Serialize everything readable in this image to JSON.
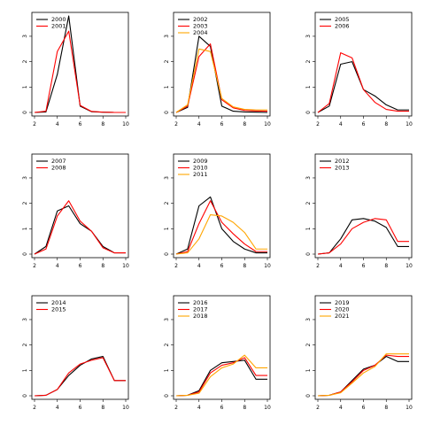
{
  "palette": {
    "black": "#000000",
    "red": "#ff0000",
    "orange": "#ffa500"
  },
  "chart_data": [
    {
      "type": "line",
      "title": "",
      "xlabel": "",
      "ylabel": "",
      "x": [
        2,
        3,
        4,
        5,
        6,
        7,
        8,
        9,
        10
      ],
      "xlim": [
        2,
        10
      ],
      "ylim": [
        0,
        3.8
      ],
      "xticks": [
        "2",
        "4",
        "6",
        "8",
        "10"
      ],
      "yticks": [
        "0",
        "1",
        "2",
        "3"
      ],
      "grid": false,
      "legend": "top-left",
      "series": [
        {
          "name": "2000",
          "color": "black",
          "values": [
            0.0,
            0.02,
            1.5,
            3.8,
            0.25,
            0.03,
            0.01,
            0.0,
            0.0
          ]
        },
        {
          "name": "2001",
          "color": "red",
          "values": [
            0.0,
            0.05,
            2.4,
            3.2,
            0.28,
            0.04,
            0.01,
            0.0,
            0.0
          ]
        }
      ]
    },
    {
      "type": "line",
      "title": "",
      "xlabel": "",
      "ylabel": "",
      "x": [
        2,
        3,
        4,
        5,
        6,
        7,
        8,
        9,
        10
      ],
      "xlim": [
        2,
        10
      ],
      "ylim": [
        0,
        3.8
      ],
      "xticks": [
        "2",
        "4",
        "6",
        "8",
        "10"
      ],
      "yticks": [
        "0",
        "1",
        "2",
        "3"
      ],
      "grid": false,
      "legend": "top-left",
      "series": [
        {
          "name": "2002",
          "color": "black",
          "values": [
            0.0,
            0.2,
            3.0,
            2.6,
            0.25,
            0.05,
            0.02,
            0.01,
            0.0
          ]
        },
        {
          "name": "2003",
          "color": "red",
          "values": [
            0.0,
            0.25,
            2.2,
            2.7,
            0.5,
            0.18,
            0.08,
            0.06,
            0.05
          ]
        },
        {
          "name": "2004",
          "color": "orange",
          "values": [
            0.0,
            0.3,
            2.5,
            2.4,
            0.55,
            0.22,
            0.12,
            0.1,
            0.1
          ]
        }
      ]
    },
    {
      "type": "line",
      "title": "",
      "xlabel": "",
      "ylabel": "",
      "x": [
        2,
        3,
        4,
        5,
        6,
        7,
        8,
        9,
        10
      ],
      "xlim": [
        2,
        10
      ],
      "ylim": [
        0,
        3.8
      ],
      "xticks": [
        "2",
        "4",
        "6",
        "8",
        "10"
      ],
      "yticks": [
        "0",
        "1",
        "2",
        "3"
      ],
      "grid": false,
      "legend": "top-left",
      "series": [
        {
          "name": "2005",
          "color": "black",
          "values": [
            0.0,
            0.25,
            1.9,
            2.0,
            0.9,
            0.65,
            0.3,
            0.1,
            0.1
          ]
        },
        {
          "name": "2006",
          "color": "red",
          "values": [
            0.0,
            0.35,
            2.35,
            2.15,
            0.9,
            0.4,
            0.12,
            0.05,
            0.05
          ]
        }
      ]
    },
    {
      "type": "line",
      "title": "",
      "xlabel": "",
      "ylabel": "",
      "x": [
        2,
        3,
        4,
        5,
        6,
        7,
        8,
        9,
        10
      ],
      "xlim": [
        2,
        10
      ],
      "ylim": [
        0,
        3.8
      ],
      "xticks": [
        "2",
        "4",
        "6",
        "8",
        "10"
      ],
      "yticks": [
        "0",
        "1",
        "2",
        "3"
      ],
      "grid": false,
      "legend": "top-left",
      "series": [
        {
          "name": "2007",
          "color": "black",
          "values": [
            0.0,
            0.3,
            1.7,
            1.9,
            1.2,
            0.9,
            0.3,
            0.05,
            0.05
          ]
        },
        {
          "name": "2008",
          "color": "red",
          "values": [
            0.0,
            0.2,
            1.5,
            2.1,
            1.3,
            0.9,
            0.25,
            0.05,
            0.05
          ]
        }
      ]
    },
    {
      "type": "line",
      "title": "",
      "xlabel": "",
      "ylabel": "",
      "x": [
        2,
        3,
        4,
        5,
        6,
        7,
        8,
        9,
        10
      ],
      "xlim": [
        2,
        10
      ],
      "ylim": [
        0,
        3.8
      ],
      "xticks": [
        "2",
        "4",
        "6",
        "8",
        "10"
      ],
      "yticks": [
        "0",
        "1",
        "2",
        "3"
      ],
      "grid": false,
      "legend": "top-left",
      "series": [
        {
          "name": "2009",
          "color": "black",
          "values": [
            0.0,
            0.2,
            1.9,
            2.25,
            1.0,
            0.5,
            0.2,
            0.05,
            0.05
          ]
        },
        {
          "name": "2010",
          "color": "red",
          "values": [
            0.0,
            0.1,
            1.2,
            2.1,
            1.25,
            0.8,
            0.4,
            0.1,
            0.1
          ]
        },
        {
          "name": "2011",
          "color": "orange",
          "values": [
            0.0,
            0.05,
            0.6,
            1.55,
            1.5,
            1.25,
            0.85,
            0.2,
            0.2
          ]
        }
      ]
    },
    {
      "type": "line",
      "title": "",
      "xlabel": "",
      "ylabel": "",
      "x": [
        2,
        3,
        4,
        5,
        6,
        7,
        8,
        9,
        10
      ],
      "xlim": [
        2,
        10
      ],
      "ylim": [
        0,
        3.8
      ],
      "xticks": [
        "2",
        "4",
        "6",
        "8",
        "10"
      ],
      "yticks": [
        "0",
        "1",
        "2",
        "3"
      ],
      "grid": false,
      "legend": "top-left",
      "series": [
        {
          "name": "2012",
          "color": "black",
          "values": [
            0.0,
            0.05,
            0.6,
            1.35,
            1.4,
            1.3,
            1.05,
            0.3,
            0.3
          ]
        },
        {
          "name": "2013",
          "color": "red",
          "values": [
            0.0,
            0.05,
            0.4,
            1.0,
            1.25,
            1.4,
            1.35,
            0.5,
            0.5
          ]
        }
      ]
    },
    {
      "type": "line",
      "title": "",
      "xlabel": "",
      "ylabel": "",
      "x": [
        2,
        3,
        4,
        5,
        6,
        7,
        8,
        9,
        10
      ],
      "xlim": [
        2,
        10
      ],
      "ylim": [
        0,
        3.8
      ],
      "xticks": [
        "2",
        "4",
        "6",
        "8",
        "10"
      ],
      "yticks": [
        "0",
        "1",
        "2",
        "3"
      ],
      "grid": false,
      "legend": "top-left",
      "series": [
        {
          "name": "2014",
          "color": "black",
          "values": [
            0.0,
            0.02,
            0.25,
            0.8,
            1.2,
            1.45,
            1.55,
            0.6,
            0.6
          ]
        },
        {
          "name": "2015",
          "color": "red",
          "values": [
            0.0,
            0.02,
            0.25,
            0.9,
            1.25,
            1.4,
            1.5,
            0.6,
            0.6
          ]
        }
      ]
    },
    {
      "type": "line",
      "title": "",
      "xlabel": "",
      "ylabel": "",
      "x": [
        2,
        3,
        4,
        5,
        6,
        7,
        8,
        9,
        10
      ],
      "xlim": [
        2,
        10
      ],
      "ylim": [
        0,
        3.8
      ],
      "xticks": [
        "2",
        "4",
        "6",
        "8",
        "10"
      ],
      "yticks": [
        "0",
        "1",
        "2",
        "3"
      ],
      "grid": false,
      "legend": "top-left",
      "series": [
        {
          "name": "2016",
          "color": "black",
          "values": [
            0.0,
            0.02,
            0.2,
            1.0,
            1.3,
            1.35,
            1.4,
            0.65,
            0.65
          ]
        },
        {
          "name": "2017",
          "color": "red",
          "values": [
            0.0,
            0.02,
            0.15,
            0.9,
            1.2,
            1.3,
            1.5,
            0.8,
            0.8
          ]
        },
        {
          "name": "2018",
          "color": "orange",
          "values": [
            0.0,
            0.02,
            0.1,
            0.75,
            1.1,
            1.25,
            1.6,
            1.1,
            1.1
          ]
        }
      ]
    },
    {
      "type": "line",
      "title": "",
      "xlabel": "",
      "ylabel": "",
      "x": [
        2,
        3,
        4,
        5,
        6,
        7,
        8,
        9,
        10
      ],
      "xlim": [
        2,
        10
      ],
      "ylim": [
        0,
        3.8
      ],
      "xticks": [
        "2",
        "4",
        "6",
        "8",
        "10"
      ],
      "yticks": [
        "0",
        "1",
        "2",
        "3"
      ],
      "grid": false,
      "legend": "top-left",
      "series": [
        {
          "name": "2019",
          "color": "black",
          "values": [
            0.0,
            0.02,
            0.15,
            0.6,
            1.05,
            1.2,
            1.55,
            1.35,
            1.35
          ]
        },
        {
          "name": "2020",
          "color": "red",
          "values": [
            0.0,
            0.02,
            0.15,
            0.55,
            1.0,
            1.2,
            1.6,
            1.55,
            1.55
          ]
        },
        {
          "name": "2021",
          "color": "orange",
          "values": [
            0.0,
            0.02,
            0.12,
            0.5,
            0.9,
            1.15,
            1.65,
            1.65,
            1.65
          ]
        }
      ]
    }
  ]
}
